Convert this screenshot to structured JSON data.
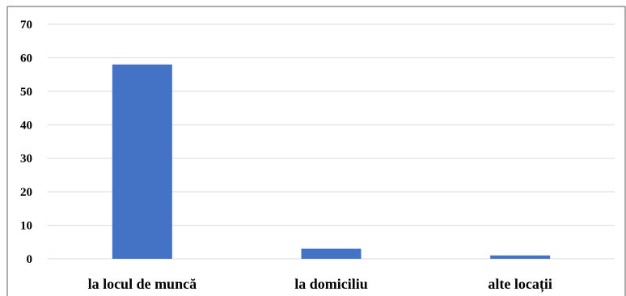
{
  "chart_data": {
    "type": "bar",
    "categories": [
      "la locul de muncă",
      "la domiciliu",
      "alte locații"
    ],
    "values": [
      58,
      3,
      1
    ],
    "ylim": [
      0,
      70
    ],
    "yticks": [
      0,
      10,
      20,
      30,
      40,
      50,
      60,
      70
    ],
    "grid": true,
    "legend": "none",
    "bar_color": "#4472C4",
    "grid_color": "#D9D9D9",
    "frame_color": "#595959"
  }
}
